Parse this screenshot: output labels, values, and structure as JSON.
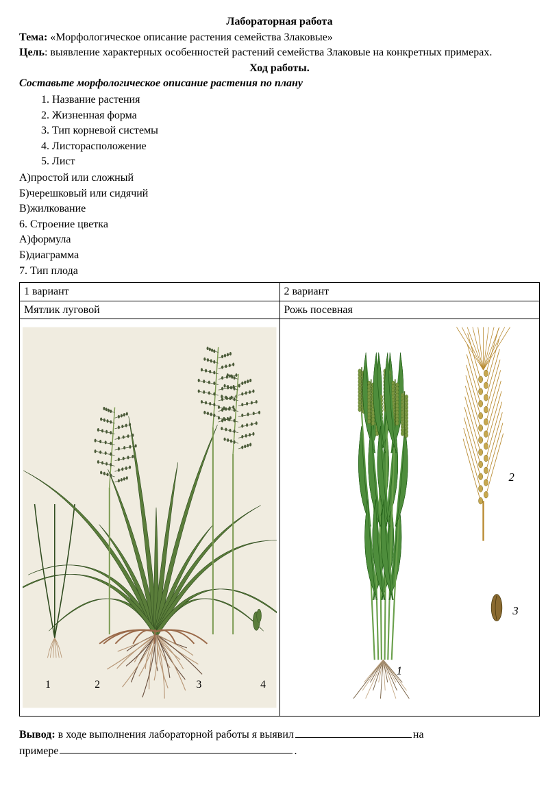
{
  "title": "Лабораторная работа",
  "topic_label": "Тема:",
  "topic_text": "  «Морфологическое описание растения семейства Злаковые»",
  "goal_label": "Цель",
  "goal_text": ": выявление характерных особенностей растений семейства Злаковые на конкретных примерах.",
  "procedure_label": "Ход работы",
  "instruction": "Составьте морфологическое описание растения по плану",
  "plan": {
    "items": [
      "Название растения",
      "Жизненная форма",
      "Тип корневой системы",
      "Листорасположение",
      "Лист"
    ]
  },
  "sub_lines": [
    "А)простой или сложный",
    "Б)черешковый или сидячий",
    "В)жилкование",
    "6. Строение цветка",
    "А)формула",
    "Б)диаграмма",
    "7. Тип плода"
  ],
  "table": {
    "variant1_header": "1 вариант",
    "variant2_header": "2 вариант",
    "plant1": "Мятлик луговой",
    "plant2": "Рожь посевная"
  },
  "illustrations": {
    "plant1": {
      "bg": "#f0ece0",
      "leaf_fill": "#5a7d3a",
      "leaf_stroke": "#2e4a1e",
      "stem": "#7a9a50",
      "root": "#b89878",
      "root_dark": "#6b5140",
      "spike_fill": "#4a5a38",
      "labels": [
        "1",
        "2",
        "3",
        "4"
      ],
      "label_color": "#000000"
    },
    "plant2": {
      "bg": "#ffffff",
      "leaf_fill": "#4e8d3c",
      "leaf_stroke": "#1e5a14",
      "stem": "#6aa04c",
      "spike_fill": "#7a9640",
      "spike_stroke": "#4a6a20",
      "awn": "#b88a30",
      "grain_fill": "#8a6a30",
      "root": "#c9b090",
      "root_dark": "#7a6448",
      "labels": [
        "1",
        "2",
        "3"
      ],
      "label_color": "#000000",
      "label_style": "italic"
    }
  },
  "conclusion": {
    "label": "Вывод:",
    "text1": " в ходе выполнения лабораторной работы я выявил",
    "text2": "на",
    "text3": "примере",
    "period": "."
  }
}
